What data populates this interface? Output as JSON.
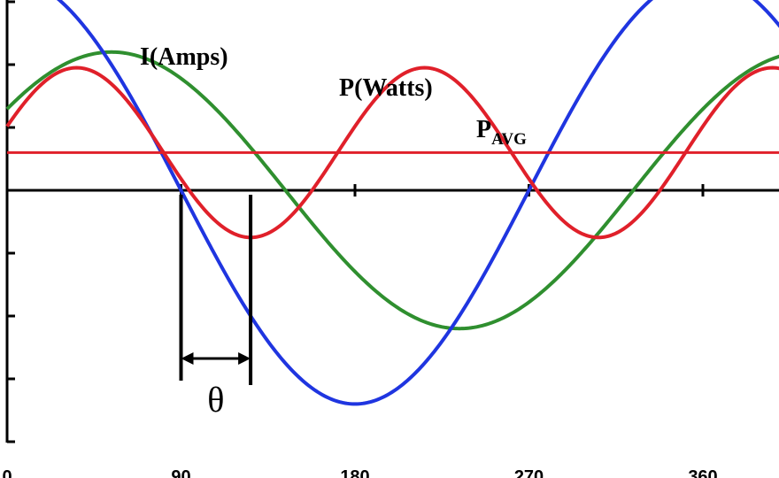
{
  "chart_data": {
    "type": "line",
    "title": "",
    "xlabel": "",
    "ylabel": "",
    "x_ticks": [
      0,
      90,
      180,
      270,
      360
    ],
    "x_tick_labels": [
      "0",
      "90",
      "180",
      "270",
      "360"
    ],
    "xlim": [
      0,
      400
    ],
    "ylim": [
      -4,
      3
    ],
    "grid": false,
    "annotations": {
      "current_label": "I(Amps)",
      "power_label": "P(Watts)",
      "pavg_main": "P",
      "pavg_sub": "AVG",
      "phase_label": "θ"
    },
    "phase_marker": {
      "from_deg": 90,
      "to_deg": 126
    },
    "series": [
      {
        "name": "I(Amps)",
        "kind": "sine",
        "amplitude": 2.2,
        "phase_deg": 36,
        "color": "#2f8f2f"
      },
      {
        "name": "",
        "kind": "sine",
        "amplitude": 3.4,
        "phase_deg": 90,
        "color": "#1f35e0"
      },
      {
        "name": "P(Watts)",
        "kind": "power",
        "offset": 0.6,
        "amplitude": 1.35,
        "color": "#e0202a"
      },
      {
        "name": "PAVG",
        "kind": "constant",
        "value": 0.6,
        "color": "#e0202a"
      }
    ]
  }
}
